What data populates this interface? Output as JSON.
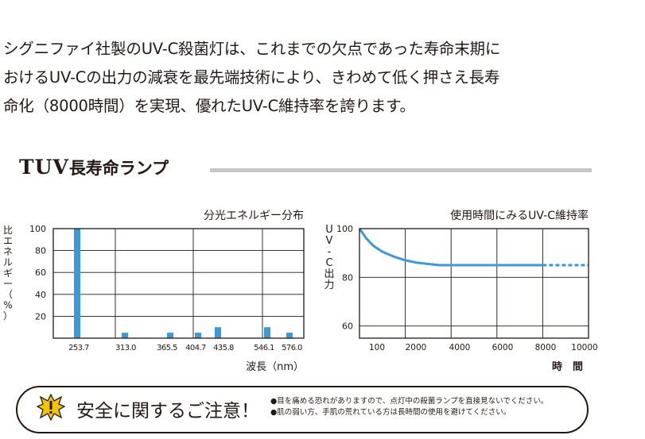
{
  "intro": {
    "lines": [
      "シグニファイ社製のUV-C殺菌灯は、これまでの欠点であった寿命末期に",
      "おけるUV-Cの出力の減衰を最先端技術により、きわめて低く押さえ長寿",
      "命化（8000時間）を実現、優れたUV-C維持率を誇ります。"
    ]
  },
  "section": {
    "title_latin": "TUV",
    "title_jp": "長寿命ランプ",
    "rule_color": "#c8c8c8"
  },
  "chart_data": [
    {
      "type": "bar",
      "title": "分光エネルギー分布",
      "ylabel": "比エネルギー（%）",
      "xlabel": "波長（nm）",
      "categories": [
        "253.7",
        "313.0",
        "365.5",
        "404.7",
        "435.8",
        "546.1",
        "576.0"
      ],
      "values": [
        100,
        5,
        5,
        5,
        10,
        10,
        5
      ],
      "yticks": [
        20,
        40,
        60,
        80,
        100
      ],
      "ylim": [
        0,
        100
      ],
      "grid": true,
      "color": "#3a9ad9"
    },
    {
      "type": "line",
      "title": "使用時間にみるUV-C維持率",
      "ylabel": "UV-C出力",
      "xlabel": "時　間",
      "xticks": [
        "100",
        "2000",
        "4000",
        "6000",
        "8000",
        "10000"
      ],
      "yticks": [
        "60",
        "80",
        "100"
      ],
      "ylim": [
        55,
        100
      ],
      "xlim": [
        0,
        10000
      ],
      "grid": true,
      "color": "#3a9ad9",
      "series": [
        {
          "x": [
            0,
            300,
            600,
            1000,
            1500,
            2000,
            2500,
            3000,
            3500,
            4000,
            5000,
            6000,
            7000,
            8000
          ],
          "y": [
            100,
            96,
            93,
            90.5,
            88.5,
            87,
            86,
            85.5,
            85,
            85,
            85,
            85,
            85,
            85
          ]
        },
        {
          "x": [
            8000,
            9000,
            10000
          ],
          "y": [
            85,
            85,
            85
          ],
          "dashed": true
        }
      ]
    }
  ],
  "caution": {
    "title": "安全に関するご注意！",
    "notes": [
      "●目を痛める恐れがありますので、点灯中の殺菌ランプを直接見ないでください。",
      "●肌の弱い方、手肌の荒れている方は長時間の使用を避けてください。"
    ],
    "icon": "warning-burst-icon",
    "icon_colors": [
      "#f5c400",
      "#231815"
    ]
  }
}
